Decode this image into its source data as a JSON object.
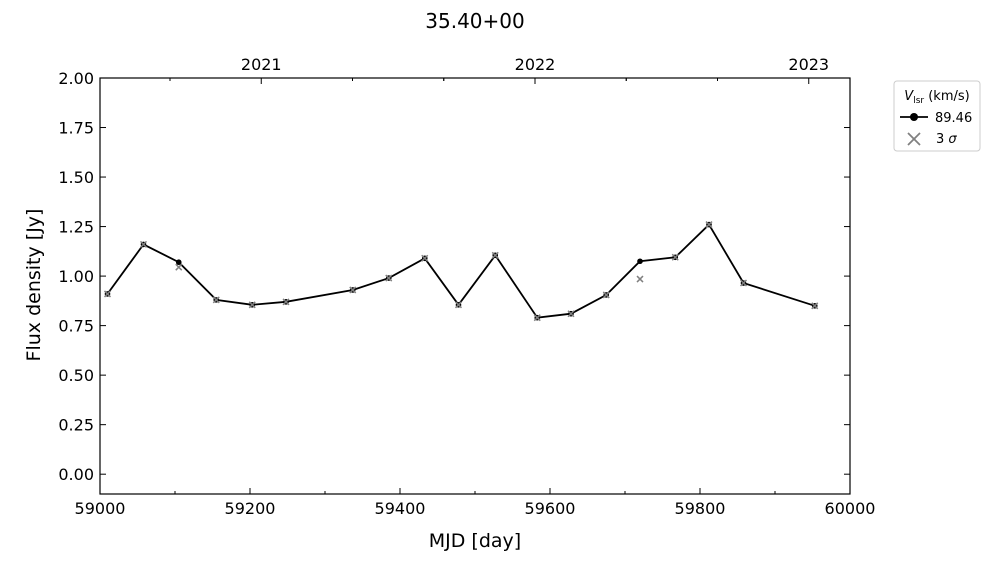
{
  "chart_data": {
    "type": "line",
    "title": "35.40+00",
    "xlabel": "MJD [day]",
    "ylabel": "Flux density [Jy]",
    "xlim": [
      59000,
      60000
    ],
    "ylim": [
      -0.1,
      2.0
    ],
    "xticks": [
      59000,
      59200,
      59400,
      59600,
      59800,
      60000
    ],
    "yticks": [
      0.0,
      0.25,
      0.5,
      0.75,
      1.0,
      1.25,
      1.5,
      1.75,
      2.0
    ],
    "top_axis": {
      "ticks": [
        {
          "mjd": 59215,
          "label": "2021"
        },
        {
          "mjd": 59580,
          "label": "2022"
        },
        {
          "mjd": 59945,
          "label": "2023"
        }
      ]
    },
    "legend": {
      "placement": "outside-top-right",
      "title_symbol": "V",
      "title_subscript": "lsr",
      "title_unit": "(km/s)",
      "entries": [
        {
          "label": "89.46",
          "marker": "line-dot",
          "color": "#000000"
        },
        {
          "label_text": "3",
          "label_sigma": "σ",
          "marker": "x",
          "color": "#808080"
        }
      ]
    },
    "series": [
      {
        "name": "89.46",
        "color": "#000000",
        "x": [
          59010,
          59058,
          59105,
          59155,
          59203,
          59248,
          59337,
          59385,
          59433,
          59478,
          59527,
          59583,
          59628,
          59675,
          59720,
          59767,
          59812,
          59858,
          59953
        ],
        "y": [
          0.91,
          1.16,
          1.07,
          0.88,
          0.855,
          0.87,
          0.93,
          0.99,
          1.09,
          0.855,
          1.105,
          0.79,
          0.81,
          0.905,
          1.075,
          1.095,
          1.26,
          0.965,
          0.85
        ]
      }
    ],
    "sigma3": {
      "color": "#808080",
      "x": [
        59010,
        59058,
        59105,
        59155,
        59203,
        59248,
        59337,
        59385,
        59433,
        59478,
        59527,
        59583,
        59628,
        59675,
        59720,
        59767,
        59812,
        59858,
        59953
      ],
      "y": [
        0.91,
        1.16,
        1.045,
        0.88,
        0.855,
        0.87,
        0.93,
        0.99,
        1.09,
        0.855,
        1.105,
        0.79,
        0.81,
        0.905,
        0.985,
        1.095,
        1.26,
        0.965,
        0.85
      ]
    }
  }
}
